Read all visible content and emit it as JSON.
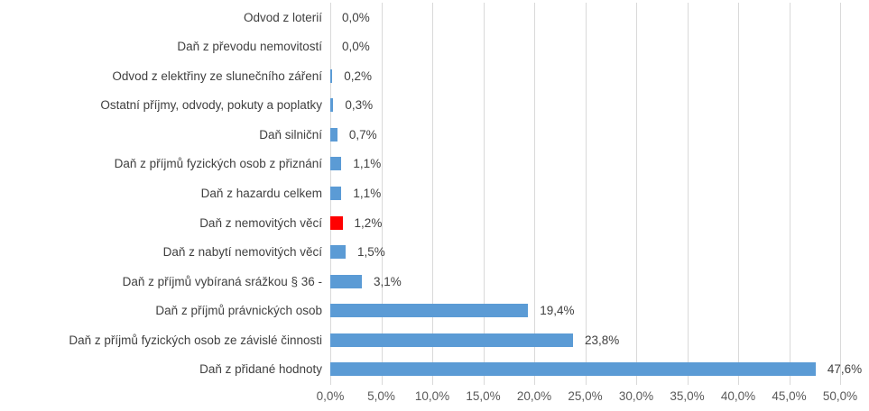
{
  "chart_data": {
    "type": "bar",
    "orientation": "horizontal",
    "title": "",
    "xlabel": "",
    "ylabel": "",
    "xlim": [
      0,
      50
    ],
    "grid": true,
    "legend": "none",
    "categories": [
      "Odvod z loterií",
      "Daň z převodu nemovitostí",
      "Odvod z elektřiny ze slunečního záření",
      "Ostatní příjmy, odvody, pokuty a poplatky",
      "Daň silniční",
      "Daň z příjmů fyzických osob z přiznání",
      "Daň z hazardu celkem",
      "Daň z nemovitých věcí",
      "Daň z nabytí nemovitých věcí",
      "Daň z příjmů vybíraná srážkou § 36 -",
      "Daň z příjmů právnických osob",
      "Daň z příjmů fyzických osob ze závislé činnosti",
      "Daň z přidané hodnoty"
    ],
    "values": [
      0.0,
      0.0,
      0.2,
      0.3,
      0.7,
      1.1,
      1.1,
      1.2,
      1.5,
      3.1,
      19.4,
      23.8,
      47.6
    ],
    "data_labels": [
      "0,0%",
      "0,0%",
      "0,2%",
      "0,3%",
      "0,7%",
      "1,1%",
      "1,1%",
      "1,2%",
      "1,5%",
      "3,1%",
      "19,4%",
      "23,8%",
      "47,6%"
    ],
    "highlight_index": 7,
    "x_ticks_values": [
      0,
      5,
      10,
      15,
      20,
      25,
      30,
      35,
      40,
      45,
      50
    ],
    "x_ticks_labels": [
      "0,0%",
      "5,0%",
      "10,0%",
      "15,0%",
      "20,0%",
      "25,0%",
      "30,0%",
      "35,0%",
      "40,0%",
      "45,0%",
      "50,0%"
    ],
    "colors": {
      "bar": "#5b9bd5",
      "highlight_bar": "#ff0000",
      "gridline": "#d9d9d9",
      "category_text": "#404040",
      "value_text": "#404040",
      "axis_text": "#595959",
      "background": "#ffffff"
    }
  }
}
